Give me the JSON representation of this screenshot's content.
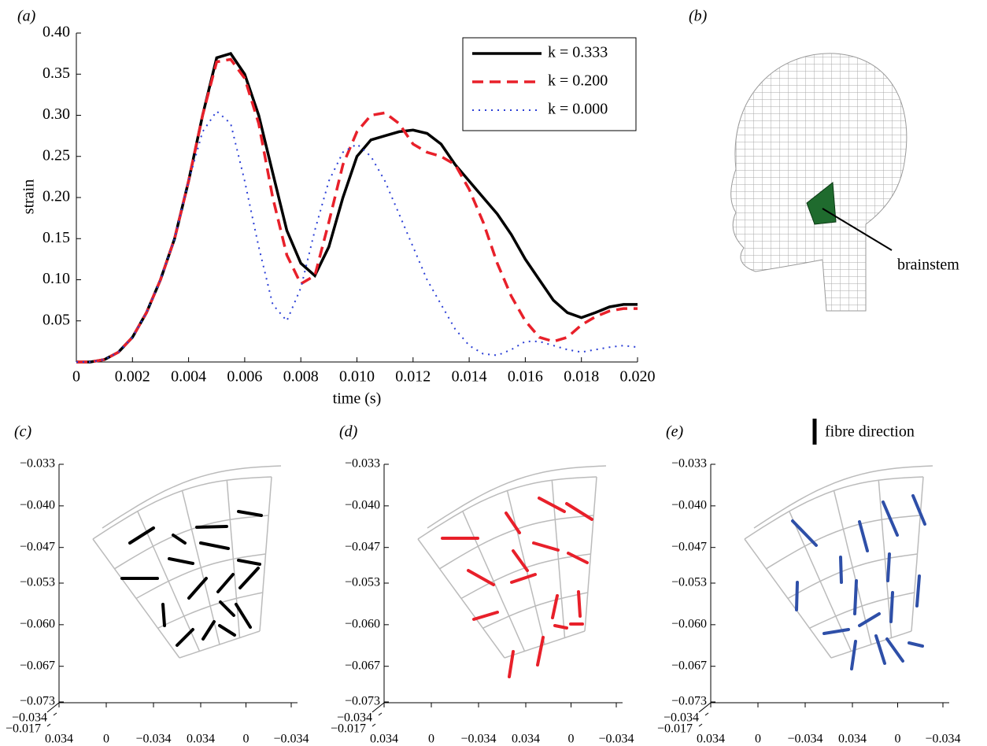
{
  "chart_data": [
    {
      "type": "line",
      "label": "(a)",
      "x_label": "time (s)",
      "y_label": "strain",
      "x": [
        0,
        0.0005,
        0.001,
        0.0015,
        0.002,
        0.0025,
        0.003,
        0.0035,
        0.004,
        0.0045,
        0.005,
        0.0055,
        0.006,
        0.0065,
        0.007,
        0.0075,
        0.008,
        0.0085,
        0.009,
        0.0095,
        0.01,
        0.0105,
        0.011,
        0.0115,
        0.012,
        0.0125,
        0.013,
        0.0135,
        0.014,
        0.0145,
        0.015,
        0.0155,
        0.016,
        0.0165,
        0.017,
        0.0175,
        0.018,
        0.0185,
        0.019,
        0.0195,
        0.02
      ],
      "series": [
        {
          "name": "k = 0.333",
          "color": "#000000",
          "style": "solid",
          "values": [
            0,
            0,
            0.003,
            0.012,
            0.03,
            0.06,
            0.1,
            0.15,
            0.22,
            0.3,
            0.37,
            0.375,
            0.35,
            0.3,
            0.23,
            0.16,
            0.12,
            0.105,
            0.14,
            0.2,
            0.25,
            0.27,
            0.275,
            0.28,
            0.282,
            0.278,
            0.265,
            0.24,
            0.22,
            0.2,
            0.18,
            0.155,
            0.125,
            0.1,
            0.075,
            0.06,
            0.054,
            0.06,
            0.067,
            0.07,
            0.07
          ]
        },
        {
          "name": "k = 0.200",
          "color": "#e8202a",
          "style": "dashed",
          "values": [
            0,
            0,
            0.003,
            0.012,
            0.03,
            0.06,
            0.1,
            0.15,
            0.22,
            0.3,
            0.365,
            0.368,
            0.345,
            0.29,
            0.2,
            0.13,
            0.095,
            0.105,
            0.17,
            0.24,
            0.28,
            0.3,
            0.303,
            0.29,
            0.265,
            0.255,
            0.25,
            0.24,
            0.21,
            0.17,
            0.12,
            0.08,
            0.05,
            0.03,
            0.025,
            0.03,
            0.045,
            0.055,
            0.062,
            0.065,
            0.065
          ]
        },
        {
          "name": "k = 0.000",
          "color": "#2b3fd6",
          "style": "dotted",
          "values": [
            0,
            0,
            0.003,
            0.012,
            0.03,
            0.06,
            0.1,
            0.15,
            0.22,
            0.28,
            0.305,
            0.29,
            0.22,
            0.14,
            0.07,
            0.05,
            0.09,
            0.16,
            0.22,
            0.255,
            0.265,
            0.25,
            0.22,
            0.18,
            0.14,
            0.1,
            0.07,
            0.04,
            0.02,
            0.01,
            0.008,
            0.015,
            0.025,
            0.025,
            0.02,
            0.015,
            0.012,
            0.015,
            0.018,
            0.02,
            0.018
          ]
        }
      ],
      "xlim": [
        0,
        0.02
      ],
      "ylim": [
        0,
        0.4
      ],
      "xticks": [
        0,
        0.002,
        0.004,
        0.006,
        0.008,
        {
          "value": 0.01,
          "label": "0.010"
        },
        0.012,
        0.014,
        0.016,
        0.018,
        {
          "value": 0.02,
          "label": "0.020"
        }
      ],
      "yticks": [
        0.05,
        {
          "value": 0.1,
          "label": "0.10"
        },
        0.15,
        {
          "value": 0.2,
          "label": "0.20"
        },
        0.25,
        {
          "value": 0.3,
          "label": "0.30"
        },
        0.35,
        {
          "value": 0.4,
          "label": "0.40"
        }
      ],
      "legend": "upper right"
    },
    {
      "type": "mesh3d",
      "label": "(c)",
      "color": "#000000",
      "zlim": [
        -0.073,
        -0.033
      ],
      "zticks": [
        {
          "value": -0.033,
          "label": "−0.033"
        },
        {
          "value": -0.04,
          "label": "−0.040"
        },
        {
          "value": -0.047,
          "label": "−0.047"
        },
        {
          "value": -0.053,
          "label": "−0.053"
        },
        {
          "value": -0.06,
          "label": "−0.060"
        },
        {
          "value": -0.067,
          "label": "−0.067"
        },
        {
          "value": -0.073,
          "label": "−0.073"
        }
      ],
      "corner_ticks": [
        {
          "value": -0.034,
          "label": "−0.034"
        },
        {
          "value": -0.017,
          "label": "−0.017"
        }
      ],
      "xticks": [
        0.034,
        0,
        {
          "value": -0.034,
          "label": "−0.034"
        }
      ],
      "yticks": [
        0.034,
        0,
        {
          "value": -0.034,
          "label": "−0.034"
        }
      ]
    },
    {
      "type": "mesh3d",
      "label": "(d)",
      "color": "#e8202a",
      "zlim": [
        -0.073,
        -0.033
      ],
      "zticks": [
        {
          "value": -0.033,
          "label": "−0.033"
        },
        {
          "value": -0.04,
          "label": "−0.040"
        },
        {
          "value": -0.047,
          "label": "−0.047"
        },
        {
          "value": -0.053,
          "label": "−0.053"
        },
        {
          "value": -0.06,
          "label": "−0.060"
        },
        {
          "value": -0.067,
          "label": "−0.067"
        },
        {
          "value": -0.073,
          "label": "−0.073"
        }
      ],
      "corner_ticks": [
        {
          "value": -0.034,
          "label": "−0.034"
        },
        {
          "value": -0.017,
          "label": "−0.017"
        }
      ],
      "xticks": [
        0.034,
        0,
        {
          "value": -0.034,
          "label": "−0.034"
        }
      ],
      "yticks": [
        0.034,
        0,
        {
          "value": -0.034,
          "label": "−0.034"
        }
      ]
    },
    {
      "type": "mesh3d",
      "label": "(e)",
      "color": "#2e4fa8",
      "legend_label": "fibre direction",
      "zlim": [
        -0.073,
        -0.033
      ],
      "zticks": [
        {
          "value": -0.033,
          "label": "−0.033"
        },
        {
          "value": -0.04,
          "label": "−0.040"
        },
        {
          "value": -0.047,
          "label": "−0.047"
        },
        {
          "value": -0.053,
          "label": "−0.053"
        },
        {
          "value": -0.06,
          "label": "−0.060"
        },
        {
          "value": -0.067,
          "label": "−0.067"
        },
        {
          "value": -0.073,
          "label": "−0.073"
        }
      ],
      "corner_ticks": [
        {
          "value": -0.034,
          "label": "−0.034"
        },
        {
          "value": -0.017,
          "label": "−0.017"
        }
      ],
      "xticks": [
        0.034,
        0,
        {
          "value": -0.034,
          "label": "−0.034"
        }
      ],
      "yticks": [
        0.034,
        0,
        {
          "value": -0.034,
          "label": "−0.034"
        }
      ]
    }
  ],
  "panel_b": {
    "label": "(b)",
    "annotation": "brainstem"
  }
}
